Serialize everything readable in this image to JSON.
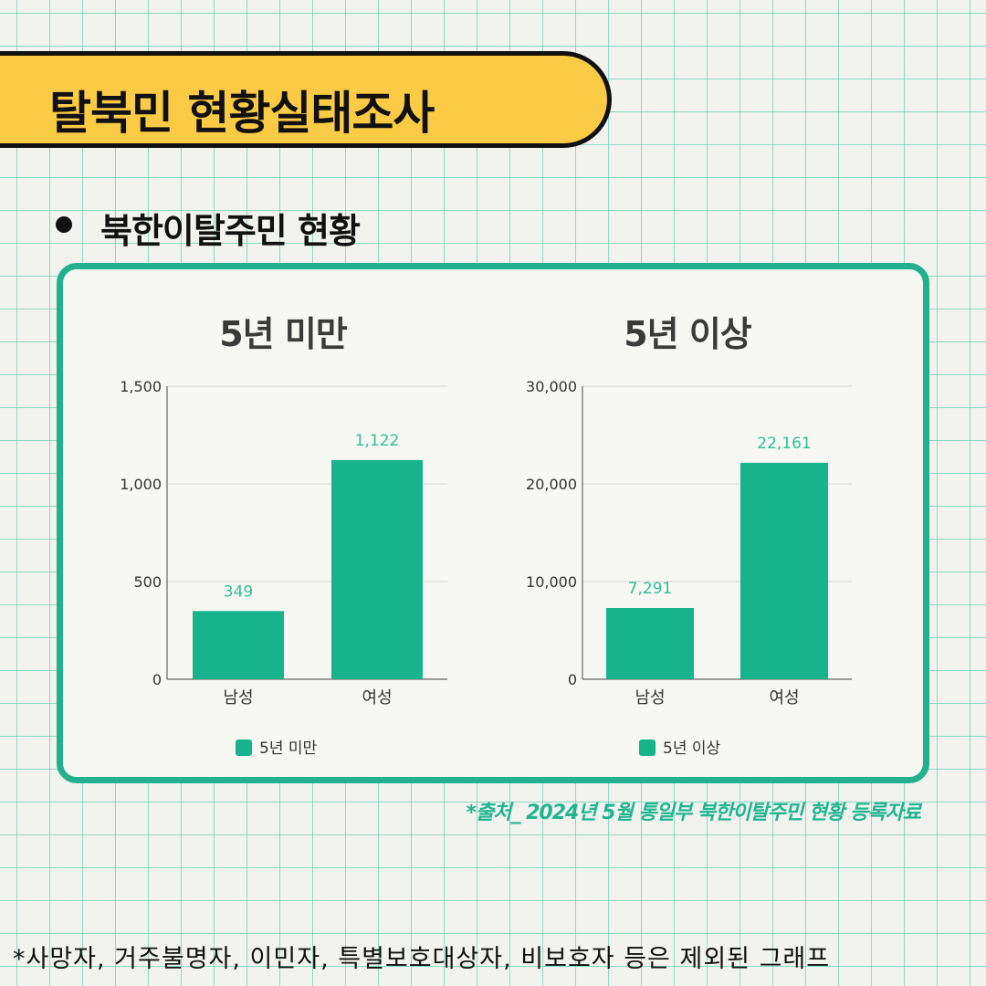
{
  "title": "탈북민 현황실태조사",
  "subtitle": "북한이탈주민 현황",
  "source": "*출처_ 2024년 5월 통일부 북한이탈주민 현황 등록자료",
  "footnote": "*사망자, 거주불명자, 이민자, 특별보호대상자, 비보호자 등은 제외된 그래프",
  "colors": {
    "bar": "#17b48c",
    "label": "#2fbf98",
    "border": "#23b08c",
    "banner": "#fccb45"
  },
  "chart_data": [
    {
      "type": "bar",
      "title": "5년 미만",
      "categories": [
        "남성",
        "여성"
      ],
      "series": [
        {
          "name": "5년 미만",
          "values": [
            349,
            1122
          ]
        }
      ],
      "data_labels": [
        "349",
        "1,122"
      ],
      "ylim": [
        0,
        1500
      ],
      "yticks": [
        0,
        500,
        1000,
        1500
      ],
      "ytick_labels": [
        "0",
        "500",
        "1,000",
        "1,500"
      ],
      "grid": true,
      "legend": "bottom"
    },
    {
      "type": "bar",
      "title": "5년 이상",
      "categories": [
        "남성",
        "여성"
      ],
      "series": [
        {
          "name": "5년 이상",
          "values": [
            7291,
            22161
          ]
        }
      ],
      "data_labels": [
        "7,291",
        "22,161"
      ],
      "ylim": [
        0,
        30000
      ],
      "yticks": [
        0,
        10000,
        20000,
        30000
      ],
      "ytick_labels": [
        "0",
        "10,000",
        "20,000",
        "30,000"
      ],
      "grid": true,
      "legend": "bottom"
    }
  ]
}
